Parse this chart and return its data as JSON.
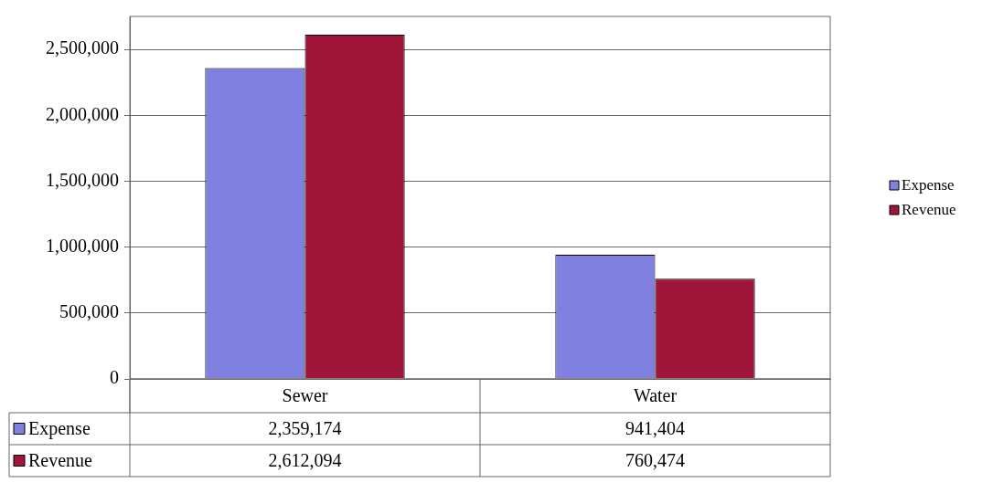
{
  "chart_data": {
    "type": "bar",
    "categories": [
      "Sewer",
      "Water"
    ],
    "series": [
      {
        "name": "Expense",
        "color": "#8080e0",
        "values": [
          2359174,
          941404
        ],
        "value_labels": [
          "2,359,174",
          "941,404"
        ]
      },
      {
        "name": "Revenue",
        "color": "#a0163a",
        "values": [
          2612094,
          760474
        ],
        "value_labels": [
          "2,612,094",
          "760,474"
        ]
      }
    ],
    "ylim": [
      0,
      2750000
    ],
    "yticks": [
      0,
      {
        "value": 500000,
        "label": "500,000"
      },
      {
        "value": 1000000,
        "label": "1,000,000"
      },
      {
        "value": 1500000,
        "label": "1,500,000"
      },
      {
        "value": 2000000,
        "label": "2,000,000"
      },
      {
        "value": 2500000,
        "label": "2,500,000"
      }
    ],
    "grid": "y",
    "legend": "right"
  }
}
